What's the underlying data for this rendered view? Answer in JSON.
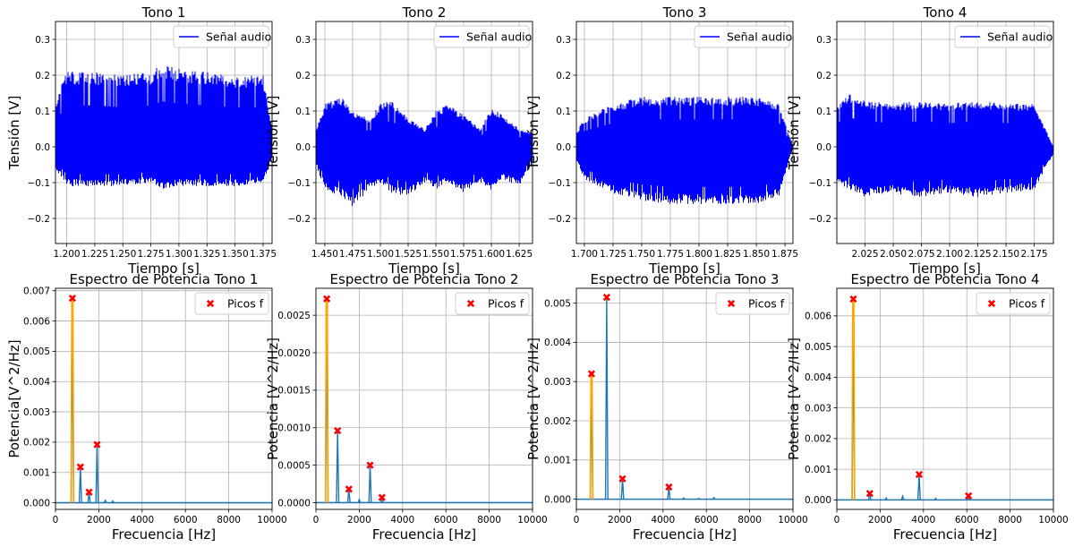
{
  "colors": {
    "signal": "#0000ff",
    "spectrum": "#1f77b4",
    "fundamental": "#ffa500",
    "peaks": "#ff0000",
    "grid": "#b0b0b0"
  },
  "chart_data": [
    {
      "type": "line",
      "title": "Tono 1",
      "xlabel": "Tiempo [s]",
      "ylabel": "Tensión [V]",
      "legend": "Señal audio",
      "legend_loc": "upper right",
      "grid": true,
      "xlim": [
        1.19,
        1.383
      ],
      "ylim": [
        -0.27,
        0.35
      ],
      "xticks": [
        1.2,
        1.225,
        1.25,
        1.275,
        1.3,
        1.325,
        1.35,
        1.375
      ],
      "xtick_labels": [
        "1.200",
        "1.225",
        "1.250",
        "1.275",
        "1.300",
        "1.325",
        "1.350",
        "1.375"
      ],
      "yticks": [
        -0.2,
        -0.1,
        0.0,
        0.1,
        0.2,
        0.3
      ],
      "ytick_labels": [
        "−0.2",
        "−0.1",
        "0.0",
        "0.1",
        "0.2",
        "0.3"
      ],
      "envelope": {
        "x": [
          1.19,
          1.2,
          1.225,
          1.25,
          1.275,
          1.285,
          1.3,
          1.325,
          1.35,
          1.375,
          1.383
        ],
        "upper": [
          0.13,
          0.21,
          0.21,
          0.2,
          0.21,
          0.23,
          0.22,
          0.21,
          0.2,
          0.2,
          0.05
        ],
        "lower": [
          -0.06,
          -0.11,
          -0.11,
          -0.11,
          -0.1,
          -0.12,
          -0.11,
          -0.11,
          -0.11,
          -0.1,
          -0.03
        ]
      }
    },
    {
      "type": "line",
      "title": "Tono 2",
      "xlabel": "Tiempo [s]",
      "ylabel": "Tensión [V]",
      "legend": "Señal audio",
      "legend_loc": "upper right",
      "grid": true,
      "xlim": [
        1.442,
        1.637
      ],
      "ylim": [
        -0.27,
        0.35
      ],
      "xticks": [
        1.45,
        1.475,
        1.5,
        1.525,
        1.55,
        1.575,
        1.6,
        1.625
      ],
      "xtick_labels": [
        "1.450",
        "1.475",
        "1.500",
        "1.525",
        "1.550",
        "1.575",
        "1.600",
        "1.625"
      ],
      "yticks": [
        -0.2,
        -0.1,
        0.0,
        0.1,
        0.2,
        0.3
      ],
      "ytick_labels": [
        "−0.2",
        "−0.1",
        "0.0",
        "0.1",
        "0.2",
        "0.3"
      ],
      "envelope": {
        "x": [
          1.442,
          1.45,
          1.465,
          1.475,
          1.49,
          1.5,
          1.51,
          1.525,
          1.54,
          1.55,
          1.56,
          1.575,
          1.59,
          1.6,
          1.61,
          1.625,
          1.637
        ],
        "upper": [
          0.05,
          0.12,
          0.14,
          0.1,
          0.08,
          0.12,
          0.13,
          0.08,
          0.05,
          0.1,
          0.12,
          0.09,
          0.05,
          0.11,
          0.09,
          0.05,
          0.04
        ],
        "lower": [
          -0.05,
          -0.12,
          -0.14,
          -0.17,
          -0.12,
          -0.1,
          -0.13,
          -0.14,
          -0.1,
          -0.12,
          -0.1,
          -0.13,
          -0.1,
          -0.12,
          -0.09,
          -0.11,
          -0.05
        ]
      }
    },
    {
      "type": "line",
      "title": "Tono 3",
      "xlabel": "Tiempo [s]",
      "ylabel": "Tensión [V]",
      "legend": "Señal audio",
      "legend_loc": "upper right",
      "grid": true,
      "xlim": [
        1.693,
        1.882
      ],
      "ylim": [
        -0.27,
        0.35
      ],
      "xticks": [
        1.7,
        1.725,
        1.75,
        1.775,
        1.8,
        1.825,
        1.85,
        1.875
      ],
      "xtick_labels": [
        "1.700",
        "1.725",
        "1.750",
        "1.775",
        "1.800",
        "1.825",
        "1.850",
        "1.875"
      ],
      "yticks": [
        -0.2,
        -0.1,
        0.0,
        0.1,
        0.2,
        0.3
      ],
      "ytick_labels": [
        "−0.2",
        "−0.1",
        "0.0",
        "0.1",
        "0.2",
        "0.3"
      ],
      "envelope": {
        "x": [
          1.693,
          1.7,
          1.725,
          1.75,
          1.775,
          1.8,
          1.825,
          1.85,
          1.87,
          1.882
        ],
        "upper": [
          0.04,
          0.08,
          0.12,
          0.14,
          0.14,
          0.14,
          0.14,
          0.14,
          0.12,
          0.0
        ],
        "lower": [
          -0.04,
          -0.09,
          -0.13,
          -0.15,
          -0.16,
          -0.16,
          -0.16,
          -0.16,
          -0.14,
          0.0
        ]
      }
    },
    {
      "type": "line",
      "title": "Tono 4",
      "xlabel": "Tiempo [s]",
      "ylabel": "Tensión [V]",
      "legend": "Señal audio",
      "legend_loc": "upper right",
      "grid": true,
      "xlim": [
        2.0,
        2.192
      ],
      "ylim": [
        -0.27,
        0.35
      ],
      "xticks": [
        2.025,
        2.05,
        2.075,
        2.1,
        2.125,
        2.15,
        2.175
      ],
      "xtick_labels": [
        "2.025",
        "2.050",
        "2.075",
        "2.100",
        "2.125",
        "2.150",
        "2.175"
      ],
      "yticks": [
        -0.2,
        -0.1,
        0.0,
        0.1,
        0.2,
        0.3
      ],
      "ytick_labels": [
        "−0.2",
        "−0.1",
        "0.0",
        "0.1",
        "0.2",
        "0.3"
      ],
      "envelope": {
        "x": [
          2.0,
          2.01,
          2.025,
          2.05,
          2.075,
          2.1,
          2.125,
          2.15,
          2.175,
          2.192
        ],
        "upper": [
          0.12,
          0.15,
          0.13,
          0.12,
          0.13,
          0.12,
          0.13,
          0.12,
          0.12,
          0.0
        ],
        "lower": [
          -0.1,
          -0.12,
          -0.14,
          -0.13,
          -0.14,
          -0.13,
          -0.14,
          -0.13,
          -0.12,
          -0.02
        ]
      }
    },
    {
      "type": "line",
      "title": "Espectro de Potencia Tono 1",
      "xlabel": "Frecuencia [Hz]",
      "ylabel": "Potencia[V^2/Hz]",
      "legend": "Picos f",
      "legend_loc": "upper right",
      "grid": true,
      "xlim": [
        0,
        10000
      ],
      "ylim": [
        -0.00022,
        0.00708
      ],
      "xticks": [
        0,
        2000,
        4000,
        6000,
        8000,
        10000
      ],
      "xtick_labels": [
        "0",
        "2000",
        "4000",
        "6000",
        "8000",
        "10000"
      ],
      "yticks": [
        0.0,
        0.001,
        0.002,
        0.003,
        0.004,
        0.005,
        0.006,
        0.007
      ],
      "ytick_labels": [
        "0.000",
        "0.001",
        "0.002",
        "0.003",
        "0.004",
        "0.005",
        "0.006",
        "0.007"
      ],
      "fundamental": {
        "x": 780,
        "y": 0.00675
      },
      "peaks": [
        {
          "x": 780,
          "y": 0.00675
        },
        {
          "x": 1150,
          "y": 0.00118
        },
        {
          "x": 1550,
          "y": 0.00035
        },
        {
          "x": 1920,
          "y": 0.00192
        }
      ],
      "minor_peaks": [
        {
          "x": 2300,
          "y": 8e-05
        },
        {
          "x": 2650,
          "y": 6e-05
        }
      ]
    },
    {
      "type": "line",
      "title": "Espectro de Potencia Tono 2",
      "xlabel": "Frecuencia [Hz]",
      "ylabel": "Potencia [V^2/Hz]",
      "legend": "Picos f",
      "legend_loc": "upper right",
      "grid": true,
      "xlim": [
        0,
        10000
      ],
      "ylim": [
        -9e-05,
        0.00286
      ],
      "xticks": [
        0,
        2000,
        4000,
        6000,
        8000,
        10000
      ],
      "xtick_labels": [
        "0",
        "2000",
        "4000",
        "6000",
        "8000",
        "10000"
      ],
      "yticks": [
        0.0,
        0.0005,
        0.001,
        0.0015,
        0.002,
        0.0025
      ],
      "ytick_labels": [
        "0.0000",
        "0.0005",
        "0.0010",
        "0.0015",
        "0.0020",
        "0.0025"
      ],
      "fundamental": {
        "x": 500,
        "y": 0.00272
      },
      "peaks": [
        {
          "x": 500,
          "y": 0.00272
        },
        {
          "x": 1000,
          "y": 0.00096
        },
        {
          "x": 1520,
          "y": 0.00018
        },
        {
          "x": 2500,
          "y": 0.0005
        },
        {
          "x": 3050,
          "y": 7e-05
        }
      ],
      "minor_peaks": [
        {
          "x": 2000,
          "y": 4e-05
        }
      ]
    },
    {
      "type": "line",
      "title": "Espectro de Potencia Tono 3",
      "xlabel": "Frecuencia [Hz]",
      "ylabel": "Potencia [V^2/Hz]",
      "legend": "Picos f",
      "legend_loc": "upper right",
      "grid": true,
      "xlim": [
        0,
        10000
      ],
      "ylim": [
        -0.00026,
        0.00538
      ],
      "xticks": [
        0,
        2000,
        4000,
        6000,
        8000,
        10000
      ],
      "xtick_labels": [
        "0",
        "2000",
        "4000",
        "6000",
        "8000",
        "10000"
      ],
      "yticks": [
        0.0,
        0.001,
        0.002,
        0.003,
        0.004,
        0.005
      ],
      "ytick_labels": [
        "0.000",
        "0.001",
        "0.002",
        "0.003",
        "0.004",
        "0.005"
      ],
      "fundamental": {
        "x": 700,
        "y": 0.0032
      },
      "peaks": [
        {
          "x": 700,
          "y": 0.0032
        },
        {
          "x": 1400,
          "y": 0.00515
        },
        {
          "x": 2130,
          "y": 0.00052
        },
        {
          "x": 4270,
          "y": 0.00031
        }
      ],
      "minor_peaks": [
        {
          "x": 4950,
          "y": 3e-05
        },
        {
          "x": 5650,
          "y": 2e-05
        },
        {
          "x": 6350,
          "y": 4e-05
        }
      ]
    },
    {
      "type": "line",
      "title": "Espectro de Potencia Tono 4",
      "xlabel": "Frecuencia [Hz]",
      "ylabel": "Potencia [V^2/Hz]",
      "legend": "Picos f",
      "legend_loc": "upper right",
      "grid": true,
      "xlim": [
        0,
        10000
      ],
      "ylim": [
        -0.00031,
        0.0069
      ],
      "xticks": [
        0,
        2000,
        4000,
        6000,
        8000,
        10000
      ],
      "xtick_labels": [
        "0",
        "2000",
        "4000",
        "6000",
        "8000",
        "10000"
      ],
      "yticks": [
        0.0,
        0.001,
        0.002,
        0.003,
        0.004,
        0.005,
        0.006
      ],
      "ytick_labels": [
        "0.000",
        "0.001",
        "0.002",
        "0.003",
        "0.004",
        "0.005",
        "0.006"
      ],
      "fundamental": {
        "x": 760,
        "y": 0.00655
      },
      "peaks": [
        {
          "x": 760,
          "y": 0.00655
        },
        {
          "x": 1520,
          "y": 0.00021
        },
        {
          "x": 3800,
          "y": 0.00083
        },
        {
          "x": 6080,
          "y": 0.00013
        }
      ],
      "minor_peaks": [
        {
          "x": 2280,
          "y": 6e-05
        },
        {
          "x": 3040,
          "y": 0.00012
        },
        {
          "x": 4560,
          "y": 5e-05
        }
      ]
    }
  ]
}
